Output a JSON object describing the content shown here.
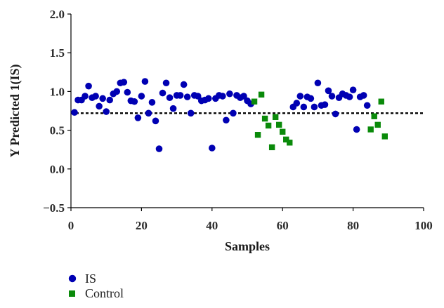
{
  "chart_data": {
    "type": "scatter",
    "title": "",
    "xlabel": "Samples",
    "ylabel": "Y Predicted 1(IS)",
    "xlim": [
      0,
      100
    ],
    "ylim": [
      -0.5,
      2.0
    ],
    "xticks": [
      0,
      20,
      40,
      60,
      80,
      100
    ],
    "yticks": [
      -0.5,
      0.0,
      0.5,
      1.0,
      1.5,
      2.0
    ],
    "ytick_labels": [
      "−0.5",
      "0.0",
      "0.5",
      "1.0",
      "1.5",
      "2.0"
    ],
    "xtick_labels": [
      "0",
      "20",
      "40",
      "60",
      "80",
      "100"
    ],
    "threshold": 0.72,
    "legend_position": "bottom-left",
    "grid": false,
    "series": [
      {
        "name": "IS",
        "marker": "circle",
        "color": "#0000b3",
        "points": [
          [
            1,
            0.73
          ],
          [
            2,
            0.89
          ],
          [
            3,
            0.89
          ],
          [
            4,
            0.94
          ],
          [
            5,
            1.07
          ],
          [
            6,
            0.92
          ],
          [
            7,
            0.94
          ],
          [
            8,
            0.81
          ],
          [
            9,
            0.91
          ],
          [
            10,
            0.74
          ],
          [
            11,
            0.89
          ],
          [
            12,
            0.97
          ],
          [
            13,
            1.0
          ],
          [
            14,
            1.11
          ],
          [
            15,
            1.12
          ],
          [
            16,
            0.99
          ],
          [
            17,
            0.88
          ],
          [
            18,
            0.87
          ],
          [
            19,
            0.66
          ],
          [
            20,
            0.94
          ],
          [
            21,
            1.13
          ],
          [
            22,
            0.72
          ],
          [
            23,
            0.86
          ],
          [
            24,
            0.62
          ],
          [
            25,
            0.26
          ],
          [
            26,
            0.98
          ],
          [
            27,
            1.11
          ],
          [
            28,
            0.92
          ],
          [
            29,
            0.78
          ],
          [
            30,
            0.95
          ],
          [
            31,
            0.95
          ],
          [
            32,
            1.09
          ],
          [
            33,
            0.93
          ],
          [
            34,
            0.72
          ],
          [
            35,
            0.95
          ],
          [
            36,
            0.94
          ],
          [
            37,
            0.88
          ],
          [
            38,
            0.89
          ],
          [
            39,
            0.91
          ],
          [
            40,
            0.27
          ],
          [
            41,
            0.91
          ],
          [
            42,
            0.95
          ],
          [
            43,
            0.94
          ],
          [
            44,
            0.63
          ],
          [
            45,
            0.97
          ],
          [
            46,
            0.72
          ],
          [
            47,
            0.95
          ],
          [
            48,
            0.92
          ],
          [
            49,
            0.94
          ],
          [
            50,
            0.88
          ],
          [
            51,
            0.84
          ],
          [
            63,
            0.8
          ],
          [
            64,
            0.85
          ],
          [
            65,
            0.94
          ],
          [
            66,
            0.8
          ],
          [
            67,
            0.93
          ],
          [
            68,
            0.91
          ],
          [
            69,
            0.8
          ],
          [
            70,
            1.11
          ],
          [
            71,
            0.82
          ],
          [
            72,
            0.83
          ],
          [
            73,
            1.01
          ],
          [
            74,
            0.94
          ],
          [
            75,
            0.71
          ],
          [
            76,
            0.92
          ],
          [
            77,
            0.97
          ],
          [
            78,
            0.95
          ],
          [
            79,
            0.93
          ],
          [
            80,
            1.02
          ],
          [
            81,
            0.51
          ],
          [
            82,
            0.93
          ],
          [
            83,
            0.95
          ],
          [
            84,
            0.82
          ]
        ]
      },
      {
        "name": "Control",
        "marker": "square",
        "color": "#0a8a0a",
        "points": [
          [
            52,
            0.87
          ],
          [
            53,
            0.44
          ],
          [
            54,
            0.96
          ],
          [
            55,
            0.65
          ],
          [
            56,
            0.56
          ],
          [
            57,
            0.28
          ],
          [
            58,
            0.67
          ],
          [
            59,
            0.57
          ],
          [
            60,
            0.48
          ],
          [
            61,
            0.38
          ],
          [
            62,
            0.34
          ],
          [
            85,
            0.51
          ],
          [
            86,
            0.68
          ],
          [
            87,
            0.57
          ],
          [
            88,
            0.87
          ],
          [
            89,
            0.42
          ]
        ]
      }
    ]
  }
}
